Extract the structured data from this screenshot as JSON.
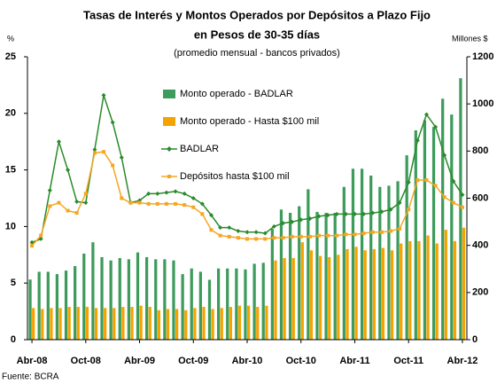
{
  "chart_data": {
    "type": "combo",
    "title": [
      "Tasas de Interés y Montos Operados por Depósitos a Plazo Fijo",
      "en Pesos de 30-35 días"
    ],
    "subtitle": "(promedio mensual - bancos privados)",
    "y_label": "%",
    "y2_label": "Millones $",
    "source": "Fuente: BCRA",
    "categories": [
      "Abr-08",
      null,
      null,
      null,
      null,
      null,
      "Oct-08",
      null,
      null,
      null,
      null,
      null,
      "Abr-09",
      null,
      null,
      null,
      null,
      null,
      "Oct-09",
      null,
      null,
      null,
      null,
      null,
      "Abr-10",
      null,
      null,
      null,
      null,
      null,
      "Oct-10",
      null,
      null,
      null,
      null,
      null,
      "Abr-11",
      null,
      null,
      null,
      null,
      null,
      "Oct-11",
      null,
      null,
      null,
      null,
      null,
      "Abr-12"
    ],
    "ylim": [
      0,
      25
    ],
    "yticks": [
      0,
      5,
      10,
      15,
      20,
      25
    ],
    "y2lim": [
      0,
      1200
    ],
    "y2ticks": [
      0,
      200,
      400,
      600,
      800,
      1000,
      1200
    ],
    "series": [
      {
        "name": "Monto operado - BADLAR",
        "type": "bar",
        "axis": "y2",
        "color": "#3d9b5c",
        "values": [
          255,
          288,
          288,
          278,
          293,
          312,
          365,
          413,
          350,
          336,
          346,
          341,
          370,
          350,
          341,
          341,
          336,
          278,
          302,
          288,
          254,
          302,
          302,
          302,
          298,
          322,
          326,
          470,
          552,
          538,
          566,
          638,
          542,
          538,
          538,
          648,
          725,
          725,
          696,
          648,
          653,
          672,
          782,
          888,
          931,
          902,
          1022,
          955,
          1109
        ]
      },
      {
        "name": "Monto operado - Hasta $100 mil",
        "type": "bar",
        "axis": "y2",
        "color": "#f5a300",
        "values": [
          134,
          130,
          134,
          134,
          139,
          139,
          139,
          134,
          134,
          134,
          139,
          139,
          144,
          139,
          125,
          130,
          130,
          125,
          134,
          139,
          130,
          134,
          139,
          144,
          144,
          139,
          144,
          336,
          346,
          346,
          413,
          379,
          355,
          350,
          360,
          384,
          394,
          379,
          384,
          389,
          379,
          408,
          418,
          418,
          442,
          408,
          466,
          418,
          475
        ]
      },
      {
        "name": "BADLAR",
        "type": "line",
        "marker": "diamond",
        "color": "#2a8a2a",
        "values": [
          8.6,
          8.9,
          13.2,
          17.5,
          15.0,
          12.2,
          12.1,
          16.8,
          21.6,
          19.2,
          16.1,
          12.1,
          12.3,
          12.9,
          12.9,
          13.0,
          13.1,
          12.9,
          12.5,
          12.0,
          11.0,
          9.9,
          9.9,
          9.6,
          9.5,
          9.5,
          9.4,
          10.0,
          10.3,
          10.4,
          10.6,
          10.7,
          10.9,
          11.0,
          11.1,
          11.1,
          11.1,
          11.1,
          11.2,
          11.3,
          11.5,
          12.1,
          13.9,
          17.6,
          19.9,
          18.8,
          16.3,
          14.0,
          12.8
        ]
      },
      {
        "name": "Depósitos hasta $100 mil",
        "type": "line",
        "marker": "square",
        "color": "#f5a623",
        "values": [
          8.3,
          9.2,
          11.8,
          12.1,
          11.4,
          11.2,
          12.9,
          16.5,
          16.6,
          15.4,
          12.5,
          12.1,
          12.1,
          12.0,
          12.0,
          12.0,
          12.0,
          11.9,
          11.7,
          11.1,
          9.7,
          9.2,
          9.1,
          9.0,
          8.9,
          8.9,
          8.9,
          9.0,
          9.0,
          9.1,
          9.1,
          9.1,
          9.2,
          9.2,
          9.2,
          9.3,
          9.3,
          9.4,
          9.5,
          9.5,
          9.6,
          9.8,
          11.5,
          14.1,
          14.1,
          13.6,
          12.6,
          12.1,
          11.7
        ]
      }
    ]
  }
}
